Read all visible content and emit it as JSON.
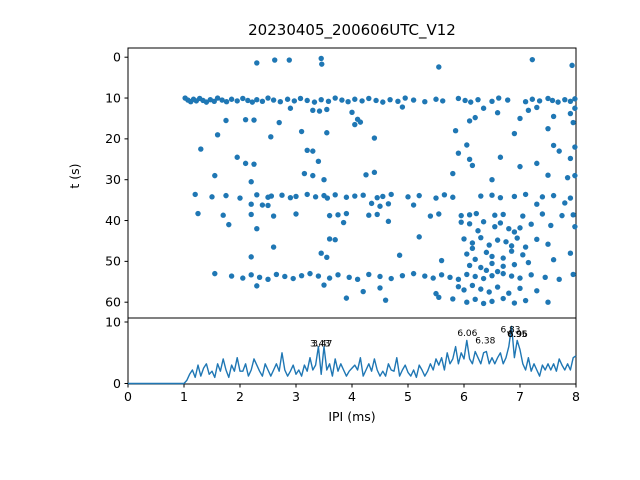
{
  "figure": {
    "title": "20230405_200606UTC_V12",
    "background": "#ffffff",
    "accent_color": "#1f77b4",
    "axis_color": "#000000"
  },
  "chart_data": [
    {
      "type": "scatter",
      "title": "20230405_200606UTC_V12",
      "xlabel": "",
      "ylabel": "t (s)",
      "xlim": [
        0,
        8
      ],
      "ylim": [
        63.9,
        -2.2
      ],
      "y_inverted": true,
      "yticks": [
        0,
        10,
        20,
        30,
        40,
        50,
        60
      ],
      "grid": false,
      "marker_color": "#1f77b4",
      "points": [
        [
          2.3,
          1.4
        ],
        [
          2.62,
          0.7
        ],
        [
          2.88,
          0.7
        ],
        [
          3.45,
          0.3
        ],
        [
          3.46,
          1.7
        ],
        [
          5.55,
          2.4
        ],
        [
          7.22,
          0.6
        ],
        [
          7.93,
          2.0
        ],
        [
          1.02,
          10.0
        ],
        [
          1.07,
          10.5
        ],
        [
          1.12,
          10.9
        ],
        [
          1.17,
          10.3
        ],
        [
          1.22,
          10.7
        ],
        [
          1.28,
          10.1
        ],
        [
          1.34,
          10.6
        ],
        [
          1.4,
          11.0
        ],
        [
          1.47,
          10.4
        ],
        [
          1.54,
          10.8
        ],
        [
          1.6,
          10.0
        ],
        [
          1.68,
          10.5
        ],
        [
          1.76,
          10.9
        ],
        [
          1.85,
          10.3
        ],
        [
          1.95,
          10.7
        ],
        [
          2.05,
          10.1
        ],
        [
          2.14,
          10.6
        ],
        [
          2.22,
          11.0
        ],
        [
          2.3,
          10.4
        ],
        [
          2.4,
          10.8
        ],
        [
          2.5,
          10.0
        ],
        [
          2.6,
          10.5
        ],
        [
          2.72,
          10.9
        ],
        [
          2.85,
          10.3
        ],
        [
          2.97,
          10.7
        ],
        [
          3.08,
          10.1
        ],
        [
          3.2,
          10.6
        ],
        [
          3.33,
          11.0
        ],
        [
          3.45,
          10.4
        ],
        [
          3.58,
          10.8
        ],
        [
          3.7,
          10.0
        ],
        [
          3.82,
          10.5
        ],
        [
          3.93,
          10.9
        ],
        [
          4.05,
          10.3
        ],
        [
          4.18,
          10.7
        ],
        [
          4.3,
          10.1
        ],
        [
          4.43,
          10.6
        ],
        [
          4.55,
          11.0
        ],
        [
          4.68,
          10.4
        ],
        [
          4.82,
          10.8
        ],
        [
          4.95,
          10.0
        ],
        [
          5.1,
          10.5
        ],
        [
          5.3,
          10.9
        ],
        [
          5.5,
          10.3
        ],
        [
          5.62,
          10.7
        ],
        [
          5.9,
          10.1
        ],
        [
          6.02,
          10.6
        ],
        [
          6.12,
          11.0
        ],
        [
          6.25,
          10.4
        ],
        [
          6.5,
          10.8
        ],
        [
          6.62,
          10.0
        ],
        [
          6.78,
          10.5
        ],
        [
          7.1,
          10.9
        ],
        [
          7.22,
          10.3
        ],
        [
          7.35,
          10.7
        ],
        [
          7.5,
          10.1
        ],
        [
          7.58,
          10.6
        ],
        [
          7.68,
          11.0
        ],
        [
          7.8,
          10.4
        ],
        [
          7.9,
          10.8
        ],
        [
          7.98,
          10.2
        ],
        [
          2.9,
          12.5
        ],
        [
          3.3,
          13.0
        ],
        [
          3.42,
          13.2
        ],
        [
          3.55,
          12.8
        ],
        [
          4.9,
          12.2
        ],
        [
          6.35,
          12.5
        ],
        [
          7.15,
          13.0
        ],
        [
          7.3,
          12.3
        ],
        [
          7.98,
          12.5
        ],
        [
          4.0,
          13.5
        ],
        [
          6.6,
          13.6
        ],
        [
          7.9,
          13.8
        ],
        [
          1.75,
          15.5
        ],
        [
          2.1,
          15.3
        ],
        [
          2.25,
          15.4
        ],
        [
          2.7,
          16.0
        ],
        [
          4.1,
          15.2
        ],
        [
          4.15,
          15.9
        ],
        [
          6.1,
          15.6
        ],
        [
          6.2,
          14.8
        ],
        [
          7.0,
          15.0
        ],
        [
          7.6,
          14.5
        ],
        [
          7.95,
          16.0
        ],
        [
          4.05,
          16.5
        ],
        [
          1.6,
          19.0
        ],
        [
          3.1,
          18.2
        ],
        [
          3.55,
          18.5
        ],
        [
          5.85,
          18.0
        ],
        [
          6.9,
          18.7
        ],
        [
          7.5,
          17.5
        ],
        [
          2.55,
          19.5
        ],
        [
          4.4,
          19.8
        ],
        [
          1.3,
          22.5
        ],
        [
          3.2,
          22.8
        ],
        [
          3.3,
          23.0
        ],
        [
          5.9,
          23.5
        ],
        [
          6.05,
          21.5
        ],
        [
          7.6,
          21.6
        ],
        [
          7.7,
          23.0
        ],
        [
          7.98,
          22.0
        ],
        [
          1.95,
          24.5
        ],
        [
          2.1,
          26.0
        ],
        [
          2.25,
          26.2
        ],
        [
          3.4,
          25.5
        ],
        [
          6.1,
          25.0
        ],
        [
          6.15,
          26.5
        ],
        [
          6.65,
          24.5
        ],
        [
          7.3,
          26.0
        ],
        [
          7.9,
          24.8
        ],
        [
          7.0,
          26.8
        ],
        [
          1.55,
          29.0
        ],
        [
          2.2,
          30.5
        ],
        [
          3.15,
          28.5
        ],
        [
          3.3,
          29.0
        ],
        [
          3.5,
          30.0
        ],
        [
          4.25,
          28.8
        ],
        [
          4.4,
          28.2
        ],
        [
          5.8,
          28.5
        ],
        [
          6.5,
          30.0
        ],
        [
          7.5,
          28.9
        ],
        [
          7.85,
          29.5
        ],
        [
          7.98,
          29.0
        ],
        [
          1.2,
          33.6
        ],
        [
          1.5,
          34.2
        ],
        [
          1.75,
          33.9
        ],
        [
          2.0,
          34.5
        ],
        [
          2.3,
          33.7
        ],
        [
          2.5,
          34.3
        ],
        [
          2.56,
          34.0
        ],
        [
          2.75,
          33.8
        ],
        [
          2.9,
          34.4
        ],
        [
          3.0,
          34.1
        ],
        [
          3.2,
          33.6
        ],
        [
          3.35,
          34.2
        ],
        [
          3.5,
          33.9
        ],
        [
          3.56,
          34.5
        ],
        [
          3.7,
          33.7
        ],
        [
          3.9,
          34.3
        ],
        [
          4.05,
          34.0
        ],
        [
          4.2,
          33.8
        ],
        [
          4.45,
          34.4
        ],
        [
          4.55,
          34.1
        ],
        [
          4.7,
          33.6
        ],
        [
          5.0,
          34.2
        ],
        [
          5.2,
          33.9
        ],
        [
          5.5,
          34.5
        ],
        [
          5.65,
          33.7
        ],
        [
          5.8,
          34.3
        ],
        [
          6.3,
          34.0
        ],
        [
          6.5,
          33.8
        ],
        [
          6.65,
          34.4
        ],
        [
          6.9,
          34.1
        ],
        [
          7.1,
          33.6
        ],
        [
          7.4,
          34.2
        ],
        [
          7.6,
          33.9
        ],
        [
          7.9,
          34.5
        ],
        [
          2.2,
          36.0
        ],
        [
          2.4,
          36.2
        ],
        [
          2.5,
          36.3
        ],
        [
          4.35,
          35.8
        ],
        [
          4.5,
          36.5
        ],
        [
          4.65,
          35.9
        ],
        [
          5.1,
          36.2
        ],
        [
          7.3,
          36.0
        ],
        [
          7.8,
          35.7
        ],
        [
          1.25,
          38.3
        ],
        [
          1.7,
          38.7
        ],
        [
          2.2,
          38.5
        ],
        [
          2.6,
          38.9
        ],
        [
          3.0,
          38.4
        ],
        [
          3.6,
          38.8
        ],
        [
          3.75,
          38.6
        ],
        [
          3.9,
          38.3
        ],
        [
          4.3,
          38.7
        ],
        [
          4.45,
          38.5
        ],
        [
          5.4,
          38.9
        ],
        [
          5.55,
          38.4
        ],
        [
          5.95,
          38.8
        ],
        [
          6.1,
          38.6
        ],
        [
          6.22,
          38.3
        ],
        [
          6.55,
          38.7
        ],
        [
          6.7,
          38.5
        ],
        [
          7.05,
          38.9
        ],
        [
          7.4,
          38.4
        ],
        [
          7.75,
          38.8
        ],
        [
          7.95,
          38.6
        ],
        [
          1.8,
          41.0
        ],
        [
          2.3,
          42.0
        ],
        [
          3.85,
          40.5
        ],
        [
          4.65,
          40.2
        ],
        [
          5.95,
          40.4
        ],
        [
          6.1,
          40.8
        ],
        [
          6.35,
          40.3
        ],
        [
          6.55,
          41.5
        ],
        [
          6.65,
          40.6
        ],
        [
          6.8,
          42.0
        ],
        [
          7.0,
          41.8
        ],
        [
          7.2,
          40.9
        ],
        [
          7.55,
          41.2
        ],
        [
          7.98,
          41.5
        ],
        [
          6.25,
          42.5
        ],
        [
          6.9,
          42.8
        ],
        [
          3.6,
          44.5
        ],
        [
          3.7,
          44.7
        ],
        [
          5.2,
          44.0
        ],
        [
          6.0,
          44.5
        ],
        [
          6.15,
          45.5
        ],
        [
          6.3,
          44.2
        ],
        [
          6.45,
          46.0
        ],
        [
          6.6,
          44.8
        ],
        [
          6.75,
          45.2
        ],
        [
          6.95,
          44.3
        ],
        [
          7.1,
          46.5
        ],
        [
          7.3,
          44.6
        ],
        [
          7.5,
          45.8
        ],
        [
          2.6,
          46.5
        ],
        [
          3.45,
          48.0
        ],
        [
          3.55,
          49.0
        ],
        [
          4.85,
          48.5
        ],
        [
          6.05,
          48.2
        ],
        [
          6.2,
          49.5
        ],
        [
          6.4,
          47.8
        ],
        [
          6.5,
          48.8
        ],
        [
          6.7,
          49.2
        ],
        [
          6.85,
          47.5
        ],
        [
          7.05,
          48.4
        ],
        [
          7.6,
          49.6
        ],
        [
          7.9,
          48.0
        ],
        [
          5.6,
          49.8
        ],
        [
          2.2,
          48.9
        ],
        [
          6.1,
          51.0
        ],
        [
          6.3,
          51.5
        ],
        [
          6.5,
          50.5
        ],
        [
          6.7,
          51.2
        ],
        [
          6.9,
          50.8
        ],
        [
          6.4,
          52.2
        ],
        [
          6.6,
          52.5
        ],
        [
          6.15,
          46.8
        ],
        [
          6.85,
          46.2
        ],
        [
          7.15,
          50.3
        ],
        [
          1.55,
          53.0
        ],
        [
          1.85,
          53.6
        ],
        [
          2.05,
          54.1
        ],
        [
          2.2,
          53.3
        ],
        [
          2.35,
          53.9
        ],
        [
          2.5,
          54.4
        ],
        [
          2.65,
          53.2
        ],
        [
          2.8,
          53.7
        ],
        [
          2.95,
          54.2
        ],
        [
          3.1,
          53.5
        ],
        [
          3.25,
          53.0
        ],
        [
          3.4,
          53.6
        ],
        [
          3.6,
          54.1
        ],
        [
          3.75,
          53.3
        ],
        [
          3.95,
          53.9
        ],
        [
          4.1,
          54.4
        ],
        [
          4.3,
          53.2
        ],
        [
          4.5,
          53.7
        ],
        [
          4.7,
          54.2
        ],
        [
          4.9,
          53.5
        ],
        [
          5.1,
          53.0
        ],
        [
          5.3,
          53.6
        ],
        [
          5.45,
          54.1
        ],
        [
          5.6,
          53.3
        ],
        [
          5.75,
          53.9
        ],
        [
          5.9,
          54.4
        ],
        [
          6.05,
          53.2
        ],
        [
          6.2,
          53.7
        ],
        [
          6.35,
          54.2
        ],
        [
          6.5,
          53.5
        ],
        [
          6.7,
          53.0
        ],
        [
          6.85,
          53.6
        ],
        [
          7.0,
          54.1
        ],
        [
          7.2,
          53.3
        ],
        [
          7.45,
          53.9
        ],
        [
          7.7,
          54.4
        ],
        [
          7.95,
          53.2
        ],
        [
          2.3,
          56.0
        ],
        [
          3.5,
          55.8
        ],
        [
          4.5,
          56.5
        ],
        [
          5.9,
          56.2
        ],
        [
          6.0,
          57.0
        ],
        [
          6.15,
          55.9
        ],
        [
          6.3,
          56.8
        ],
        [
          6.45,
          57.5
        ],
        [
          6.6,
          56.3
        ],
        [
          6.8,
          57.8
        ],
        [
          7.0,
          56.6
        ],
        [
          7.3,
          57.2
        ],
        [
          5.5,
          57.9
        ],
        [
          4.2,
          57.4
        ],
        [
          3.9,
          59.0
        ],
        [
          4.6,
          59.5
        ],
        [
          5.55,
          58.8
        ],
        [
          5.8,
          59.2
        ],
        [
          6.05,
          60.0
        ],
        [
          6.2,
          59.3
        ],
        [
          6.35,
          60.3
        ],
        [
          6.5,
          59.8
        ],
        [
          6.7,
          59.1
        ],
        [
          6.9,
          60.2
        ],
        [
          7.1,
          59.6
        ],
        [
          7.5,
          60.0
        ]
      ]
    },
    {
      "type": "line",
      "xlabel": "IPI (ms)",
      "ylabel": "",
      "xlim": [
        0,
        8
      ],
      "ylim": [
        -0.1,
        10.65
      ],
      "xticks": [
        0,
        1,
        2,
        3,
        4,
        5,
        6,
        7,
        8
      ],
      "yticks": [
        0,
        10
      ],
      "grid": false,
      "line_color": "#1f77b4",
      "flat_zero_until": 1.0,
      "x_start": 1.05,
      "dx": 0.05,
      "values": [
        0.5,
        1.5,
        2.2,
        1.0,
        3.0,
        1.2,
        2.5,
        3.2,
        1.5,
        2.0,
        1.0,
        3.2,
        2.0,
        4.0,
        2.2,
        1.0,
        3.0,
        2.0,
        4.2,
        2.0,
        2.0,
        3.2,
        1.2,
        2.2,
        4.0,
        3.0,
        2.0,
        1.2,
        3.2,
        2.2,
        1.2,
        2.2,
        3.2,
        2.0,
        5.0,
        2.2,
        1.2,
        2.0,
        3.0,
        1.5,
        2.2,
        1.2,
        3.0,
        2.0,
        4.2,
        2.2,
        3.0,
        6.0,
        1.5,
        6.0,
        2.2,
        3.2,
        1.2,
        4.0,
        2.0,
        3.2,
        2.2,
        1.2,
        2.0,
        2.5,
        3.0,
        2.2,
        4.2,
        1.2,
        2.2,
        3.2,
        2.0,
        4.0,
        2.2,
        1.2,
        2.0,
        1.2,
        3.2,
        2.2,
        2.0,
        4.2,
        1.2,
        2.2,
        3.0,
        1.8,
        1.2,
        2.2,
        1.0,
        3.0,
        2.2,
        1.2,
        2.0,
        3.2,
        2.2,
        4.0,
        3.0,
        4.2,
        2.2,
        5.0,
        3.2,
        4.0,
        6.0,
        3.2,
        5.0,
        4.0,
        7.0,
        4.0,
        3.2,
        5.2,
        4.2,
        3.2,
        5.0,
        5.2,
        3.2,
        4.2,
        3.2,
        4.2,
        5.0,
        3.2,
        4.2,
        6.0,
        9.3,
        4.2,
        7.0,
        5.5,
        3.2,
        2.2,
        4.2,
        2.0,
        3.2,
        2.2,
        1.2,
        3.0,
        2.2,
        3.2,
        2.2,
        3.2,
        2.0,
        4.0,
        3.0,
        2.2,
        3.2,
        2.2,
        4.2,
        4.5
      ],
      "annotations": [
        {
          "label": "3.43",
          "x": 3.43,
          "y": 6.0
        },
        {
          "label": "3.47",
          "x": 3.47,
          "y": 6.0
        },
        {
          "label": "6.06",
          "x": 6.06,
          "y": 7.7
        },
        {
          "label": "6.38",
          "x": 6.38,
          "y": 6.5
        },
        {
          "label": "6.83",
          "x": 6.83,
          "y": 8.3
        },
        {
          "label": "6.95",
          "x": 6.95,
          "y": 7.6
        },
        {
          "label": "6.96",
          "x": 6.96,
          "y": 7.6
        }
      ]
    }
  ]
}
